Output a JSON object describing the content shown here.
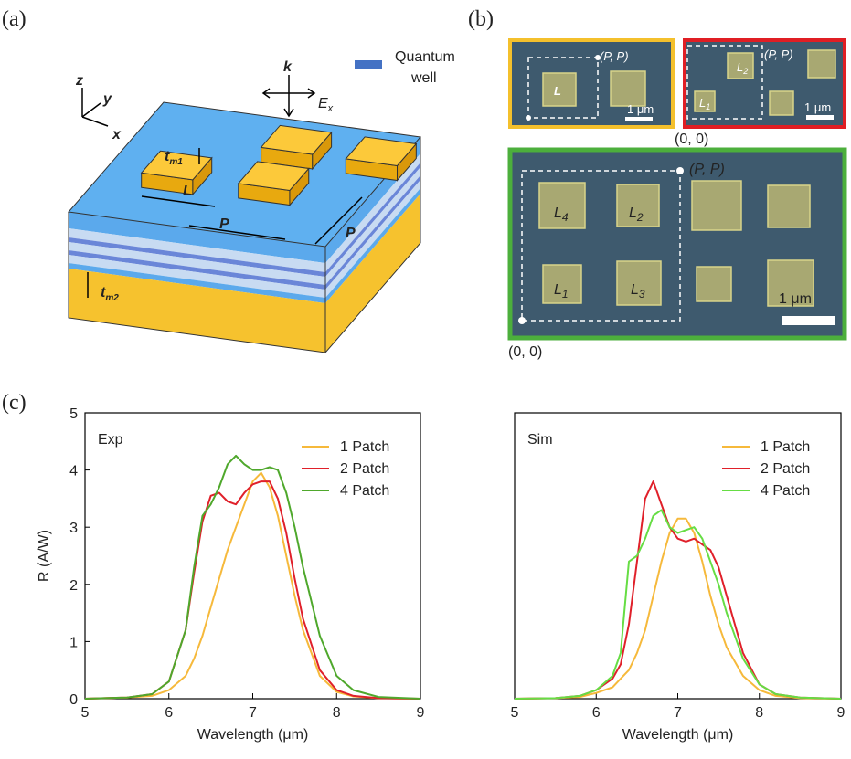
{
  "panels": {
    "a": "(a)",
    "b": "(b)",
    "c": "(c)"
  },
  "diagram_a": {
    "axes": [
      "z",
      "y",
      "x"
    ],
    "wave_vector": "k",
    "field": {
      "main": "E",
      "sub": "x"
    },
    "legend": [
      "Quantum",
      "well"
    ],
    "legend_color": "#4472c4",
    "t_m1": {
      "main": "t",
      "sub": "m1"
    },
    "t_m2": {
      "main": "t",
      "sub": "m2"
    },
    "L": "L",
    "P": [
      "P",
      "P"
    ]
  },
  "images_b": {
    "top_left": {
      "corner": "(P, P)",
      "patch": "L",
      "scale": "1 μm"
    },
    "top_right": {
      "corner": "(P, P)",
      "origin": "(0, 0)",
      "patches": [
        {
          "main": "L",
          "sub": "2"
        },
        {
          "main": "L",
          "sub": "1"
        }
      ],
      "scale": "1 μm"
    },
    "bottom": {
      "corner": "(P, P)",
      "origin": "(0, 0)",
      "patches": [
        {
          "main": "L",
          "sub": "4"
        },
        {
          "main": "L",
          "sub": "2"
        },
        {
          "main": "L",
          "sub": "1"
        },
        {
          "main": "L",
          "sub": "3"
        }
      ],
      "scale": "1 μm"
    }
  },
  "chart_data": [
    {
      "type": "line",
      "title": "Exp",
      "xlabel": "Wavelength (μm)",
      "ylabel": "R (A/W)",
      "legend": "upper right",
      "x": [
        5,
        5.5,
        5.8,
        6,
        6.2,
        6.3,
        6.4,
        6.5,
        6.6,
        6.7,
        6.8,
        6.9,
        7,
        7.1,
        7.2,
        7.3,
        7.4,
        7.5,
        7.6,
        7.8,
        8,
        8.2,
        8.5,
        9
      ],
      "xlim": [
        5,
        9
      ],
      "xticks": [
        5,
        6,
        7,
        8,
        9
      ],
      "ylim": [
        0,
        5
      ],
      "yticks": [
        0,
        1,
        2,
        3,
        4,
        5
      ],
      "series": [
        {
          "name": "1 Patch",
          "color": "#f6b93b",
          "values": [
            0,
            0.02,
            0.05,
            0.15,
            0.4,
            0.7,
            1.1,
            1.6,
            2.1,
            2.6,
            3.0,
            3.4,
            3.8,
            3.95,
            3.7,
            3.2,
            2.5,
            1.8,
            1.2,
            0.4,
            0.12,
            0.04,
            0.01,
            0
          ]
        },
        {
          "name": "2 Patch",
          "color": "#e0202a",
          "values": [
            0,
            0.02,
            0.08,
            0.3,
            1.2,
            2.2,
            3.1,
            3.55,
            3.6,
            3.45,
            3.4,
            3.6,
            3.75,
            3.8,
            3.8,
            3.5,
            2.9,
            2.1,
            1.4,
            0.5,
            0.15,
            0.05,
            0.01,
            0
          ]
        },
        {
          "name": "4 Patch",
          "color": "#4fa82c",
          "values": [
            0,
            0.02,
            0.08,
            0.3,
            1.2,
            2.3,
            3.2,
            3.4,
            3.7,
            4.1,
            4.25,
            4.1,
            4.0,
            4.0,
            4.05,
            4.0,
            3.6,
            3.0,
            2.3,
            1.1,
            0.4,
            0.15,
            0.03,
            0
          ]
        }
      ]
    },
    {
      "type": "line",
      "title": "Sim",
      "xlabel": "Wavelength (μm)",
      "legend": "upper right",
      "x": [
        5,
        5.5,
        5.8,
        6,
        6.2,
        6.3,
        6.4,
        6.5,
        6.6,
        6.7,
        6.8,
        6.9,
        7,
        7.1,
        7.2,
        7.3,
        7.4,
        7.5,
        7.6,
        7.8,
        8,
        8.2,
        8.5,
        9
      ],
      "xlim": [
        5,
        9
      ],
      "xticks": [
        5,
        6,
        7,
        8,
        9
      ],
      "ylim": [
        0,
        5
      ],
      "series": [
        {
          "name": "1 Patch",
          "color": "#f6b93b",
          "values": [
            0,
            0.01,
            0.03,
            0.1,
            0.2,
            0.35,
            0.5,
            0.8,
            1.2,
            1.8,
            2.4,
            2.9,
            3.15,
            3.15,
            2.9,
            2.4,
            1.8,
            1.3,
            0.9,
            0.4,
            0.15,
            0.05,
            0.01,
            0
          ]
        },
        {
          "name": "2 Patch",
          "color": "#e0202a",
          "values": [
            0,
            0.01,
            0.05,
            0.15,
            0.35,
            0.6,
            1.3,
            2.4,
            3.5,
            3.8,
            3.4,
            3.0,
            2.8,
            2.75,
            2.8,
            2.7,
            2.6,
            2.3,
            1.8,
            0.8,
            0.25,
            0.08,
            0.02,
            0
          ]
        },
        {
          "name": "4 Patch",
          "color": "#66dd44",
          "values": [
            0,
            0.01,
            0.05,
            0.15,
            0.4,
            0.8,
            2.4,
            2.5,
            2.8,
            3.2,
            3.3,
            3.0,
            2.9,
            2.95,
            3.0,
            2.8,
            2.4,
            2.0,
            1.5,
            0.7,
            0.25,
            0.08,
            0.02,
            0
          ]
        }
      ]
    }
  ]
}
